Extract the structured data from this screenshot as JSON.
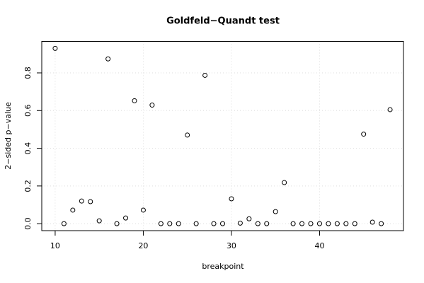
{
  "chart_data": {
    "type": "scatter",
    "title": "Goldfeld−Quandt test",
    "x_label": "breakpoint",
    "y_label": "2−sided p−value",
    "x": [
      10,
      11,
      12,
      13,
      14,
      15,
      16,
      17,
      18,
      19,
      20,
      21,
      22,
      23,
      24,
      25,
      26,
      27,
      28,
      29,
      30,
      31,
      32,
      33,
      34,
      35,
      36,
      37,
      38,
      39,
      40,
      41,
      42,
      43,
      44,
      45,
      46,
      47,
      48
    ],
    "values": [
      0.93,
      0,
      0.072,
      0.12,
      0.117,
      0.015,
      0.874,
      0,
      0.03,
      0.652,
      0.072,
      0.629,
      0,
      0,
      0,
      0.47,
      0,
      0.787,
      0,
      0,
      0.132,
      0.003,
      0.026,
      0,
      0,
      0.064,
      0.218,
      0,
      0,
      0,
      0,
      0,
      0,
      0,
      0,
      0.475,
      0.008,
      0,
      0.605
    ],
    "color": "#000000",
    "xlim": [
      8.48,
      49.52
    ],
    "ylim": [
      -0.037,
      0.967
    ],
    "xticks": [
      10,
      20,
      30,
      40
    ],
    "yticks": [
      {
        "value": 0,
        "label": "0.0"
      },
      0.2,
      0.4,
      0.6,
      0.8
    ],
    "grid": true
  }
}
